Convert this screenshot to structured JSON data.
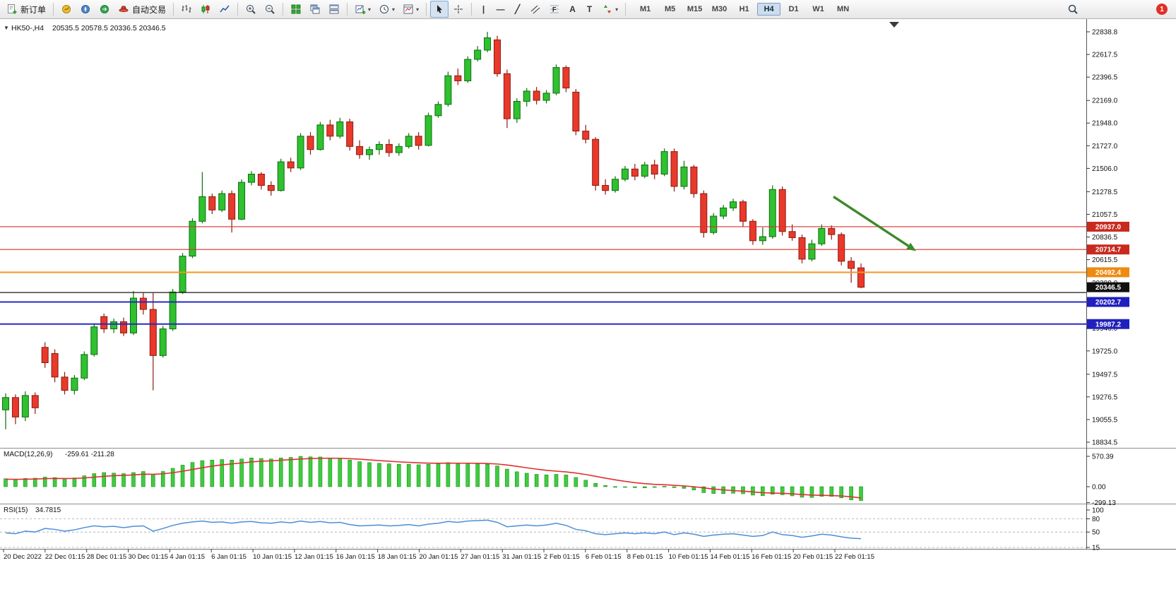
{
  "toolbar": {
    "new_order_label": "新订单",
    "auto_trading_label": "自动交易",
    "timeframes": [
      "M1",
      "M5",
      "M15",
      "M30",
      "H1",
      "H4",
      "D1",
      "W1",
      "MN"
    ],
    "active_timeframe": "H4",
    "notification_count": "1"
  },
  "icons": {
    "one_click_caret": "▼",
    "dropdown_caret": "▾",
    "vertical_line_glyph": "|",
    "horizontal_line_glyph": "—",
    "trendline_glyph": "╱",
    "fibonacci_glyph": "F",
    "text_tool_glyph": "A",
    "label_tool_glyph": "T"
  },
  "chart_header": {
    "symbol_period": "HK50-,H4",
    "ohlc": "20535.5 20578.5 20336.5 20346.5"
  },
  "panes": {
    "macd_title": "MACD(12,26,9)",
    "macd_values": "-259.61 -211.28",
    "rsi_title": "RSI(15)",
    "rsi_value": "34.7815"
  },
  "chart_data": {
    "type": "candlestick",
    "symbol": "HK50-",
    "timeframe": "H4",
    "panes_list": [
      "price",
      "macd",
      "rsi"
    ],
    "last_ohlc": {
      "open": 20535.5,
      "high": 20578.5,
      "low": 20336.5,
      "close": 20346.5
    },
    "colors": {
      "bull": "#2FC12F",
      "bull_edge": "#0E6E0E",
      "bear": "#E8392B",
      "bear_edge": "#8F1A10",
      "macd_hist": "#3FCC3F",
      "macd_hist_edge": "#179017",
      "macd_signal": "#E03030",
      "rsi_line": "#4B8FD5",
      "arrow": "#3C8A28"
    },
    "price_axis": {
      "max": 22838.8,
      "min": 18834.5,
      "ticks": [
        22838.8,
        22617.5,
        22396.5,
        22169.0,
        21948.0,
        21727.0,
        21506.0,
        21278.5,
        21057.5,
        20836.5,
        20615.5,
        20388.0,
        19946.0,
        19725.0,
        19497.5,
        19276.5,
        19055.5,
        18834.5
      ]
    },
    "hlines": [
      {
        "price": 20937.0,
        "color": "#DC3028",
        "width": 1.2,
        "tag": true,
        "tag_bg": "#C82A20"
      },
      {
        "price": 20714.7,
        "color": "#DC3028",
        "width": 1.2,
        "tag": true,
        "tag_bg": "#C82A20"
      },
      {
        "price": 20492.4,
        "color": "#F79420",
        "width": 2,
        "tag": true,
        "tag_bg": "#EF8A10"
      },
      {
        "price": 20295.0,
        "color": "#1A1A1A",
        "width": 1.2,
        "tag": false,
        "tag_bg": null
      },
      {
        "price": 20202.7,
        "color": "#2828C8",
        "width": 2,
        "tag": true,
        "tag_bg": "#2020BE"
      },
      {
        "price": 19987.2,
        "color": "#2828C8",
        "width": 2,
        "tag": true,
        "tag_bg": "#2020BE"
      }
    ],
    "current_price": {
      "value": 20346.5,
      "bg": "#101010"
    },
    "arrow": {
      "start_bar": 84.2,
      "start_price": 21230,
      "end_bar": 92.6,
      "end_price": 20700
    },
    "x_labels": [
      "20 Dec 2022",
      "22 Dec 01:15",
      "28 Dec 01:15",
      "30 Dec 01:15",
      "4 Jan 01:15",
      "6 Jan 01:15",
      "10 Jan 01:15",
      "12 Jan 01:15",
      "16 Jan 01:15",
      "18 Jan 01:15",
      "20 Jan 01:15",
      "27 Jan 01:15",
      "31 Jan 01:15",
      "2 Feb 01:15",
      "6 Feb 01:15",
      "8 Feb 01:15",
      "10 Feb 01:15",
      "14 Feb 01:15",
      "16 Feb 01:15",
      "20 Feb 01:15",
      "22 Feb 01:15"
    ],
    "candles": [
      [
        19150,
        19310,
        18960,
        19270
      ],
      [
        19270,
        19300,
        19010,
        19080
      ],
      [
        19080,
        19330,
        19040,
        19290
      ],
      [
        19290,
        19320,
        19110,
        19170
      ],
      [
        19760,
        19810,
        19560,
        19610
      ],
      [
        19700,
        19740,
        19420,
        19470
      ],
      [
        19470,
        19520,
        19300,
        19340
      ],
      [
        19340,
        19490,
        19300,
        19460
      ],
      [
        19460,
        19720,
        19440,
        19690
      ],
      [
        19690,
        19990,
        19670,
        19960
      ],
      [
        20060,
        20090,
        19900,
        19940
      ],
      [
        19940,
        20040,
        19900,
        20010
      ],
      [
        20010,
        20050,
        19870,
        19900
      ],
      [
        19900,
        20310,
        19880,
        20240
      ],
      [
        20240,
        20290,
        20080,
        20130
      ],
      [
        20130,
        20290,
        19340,
        19680
      ],
      [
        19680,
        19970,
        19660,
        19940
      ],
      [
        19940,
        20330,
        19920,
        20300
      ],
      [
        20300,
        20680,
        20280,
        20650
      ],
      [
        20650,
        21020,
        20630,
        20990
      ],
      [
        20990,
        21470,
        20970,
        21230
      ],
      [
        21230,
        21260,
        21060,
        21100
      ],
      [
        21100,
        21290,
        21080,
        21260
      ],
      [
        21260,
        21290,
        20880,
        21010
      ],
      [
        21010,
        21400,
        21000,
        21370
      ],
      [
        21370,
        21480,
        21340,
        21450
      ],
      [
        21450,
        21470,
        21300,
        21340
      ],
      [
        21340,
        21380,
        21240,
        21290
      ],
      [
        21290,
        21600,
        21280,
        21570
      ],
      [
        21570,
        21610,
        21470,
        21510
      ],
      [
        21510,
        21850,
        21490,
        21820
      ],
      [
        21820,
        21860,
        21640,
        21690
      ],
      [
        21690,
        21960,
        21680,
        21930
      ],
      [
        21930,
        21980,
        21780,
        21820
      ],
      [
        21820,
        22000,
        21800,
        21960
      ],
      [
        21960,
        21990,
        21680,
        21720
      ],
      [
        21720,
        21780,
        21600,
        21640
      ],
      [
        21640,
        21720,
        21590,
        21690
      ],
      [
        21690,
        21770,
        21640,
        21740
      ],
      [
        21740,
        21790,
        21620,
        21660
      ],
      [
        21660,
        21750,
        21630,
        21720
      ],
      [
        21720,
        21850,
        21700,
        21820
      ],
      [
        21820,
        21860,
        21690,
        21730
      ],
      [
        21730,
        22050,
        21720,
        22020
      ],
      [
        22020,
        22160,
        22000,
        22130
      ],
      [
        22130,
        22450,
        22110,
        22410
      ],
      [
        22410,
        22480,
        22320,
        22360
      ],
      [
        22360,
        22600,
        22340,
        22570
      ],
      [
        22570,
        22700,
        22550,
        22660
      ],
      [
        22660,
        22838,
        22640,
        22780
      ],
      [
        22760,
        22800,
        22400,
        22430
      ],
      [
        22430,
        22470,
        21900,
        21990
      ],
      [
        21990,
        22190,
        21950,
        22160
      ],
      [
        22160,
        22290,
        22110,
        22260
      ],
      [
        22260,
        22300,
        22130,
        22170
      ],
      [
        22170,
        22270,
        22140,
        22240
      ],
      [
        22240,
        22520,
        22220,
        22490
      ],
      [
        22490,
        22510,
        22250,
        22290
      ],
      [
        22250,
        22280,
        21830,
        21870
      ],
      [
        21870,
        21930,
        21750,
        21790
      ],
      [
        21790,
        21810,
        21290,
        21340
      ],
      [
        21340,
        21400,
        21250,
        21290
      ],
      [
        21290,
        21430,
        21270,
        21400
      ],
      [
        21400,
        21530,
        21380,
        21500
      ],
      [
        21500,
        21550,
        21390,
        21430
      ],
      [
        21430,
        21570,
        21410,
        21540
      ],
      [
        21540,
        21590,
        21400,
        21450
      ],
      [
        21450,
        21700,
        21430,
        21670
      ],
      [
        21670,
        21700,
        21280,
        21330
      ],
      [
        21330,
        21580,
        21300,
        21520
      ],
      [
        21520,
        21540,
        21220,
        21260
      ],
      [
        21260,
        21290,
        20830,
        20880
      ],
      [
        20880,
        21070,
        20860,
        21040
      ],
      [
        21040,
        21150,
        21010,
        21120
      ],
      [
        21120,
        21210,
        21090,
        21180
      ],
      [
        21180,
        21200,
        20940,
        20990
      ],
      [
        20990,
        21010,
        20760,
        20800
      ],
      [
        20800,
        20930,
        20760,
        20840
      ],
      [
        20840,
        21340,
        20820,
        21300
      ],
      [
        21300,
        21330,
        20850,
        20890
      ],
      [
        20890,
        20960,
        20800,
        20830
      ],
      [
        20830,
        20860,
        20580,
        20620
      ],
      [
        20620,
        20810,
        20600,
        20770
      ],
      [
        20770,
        20960,
        20750,
        20920
      ],
      [
        20920,
        20950,
        20810,
        20860
      ],
      [
        20860,
        20880,
        20560,
        20600
      ],
      [
        20600,
        20640,
        20390,
        20530
      ],
      [
        20535.5,
        20578.5,
        20336.5,
        20346.5
      ]
    ],
    "macd": {
      "params": "12,26,9",
      "main_value": -259.61,
      "signal_value": -211.28,
      "axis_ticks": [
        570.39,
        0.0,
        -299.13
      ],
      "histogram": [
        150,
        140,
        155,
        160,
        180,
        170,
        155,
        165,
        205,
        245,
        265,
        255,
        245,
        265,
        285,
        235,
        285,
        345,
        405,
        455,
        490,
        500,
        510,
        500,
        520,
        540,
        530,
        520,
        540,
        550,
        570,
        560,
        558,
        540,
        528,
        500,
        470,
        452,
        440,
        430,
        422,
        420,
        412,
        420,
        432,
        452,
        442,
        440,
        430,
        420,
        390,
        330,
        280,
        252,
        232,
        222,
        232,
        220,
        172,
        122,
        62,
        22,
        2,
        -8,
        -18,
        -22,
        -12,
        8,
        -18,
        -32,
        -62,
        -112,
        -128,
        -130,
        -122,
        -132,
        -158,
        -168,
        -142,
        -152,
        -172,
        -198,
        -202,
        -182,
        -182,
        -210,
        -248,
        -259.61
      ],
      "signal": [
        140,
        138,
        140,
        144,
        151,
        155,
        154,
        155,
        164,
        179,
        195,
        206,
        213,
        222,
        234,
        233,
        242,
        262,
        290,
        322,
        356,
        385,
        410,
        428,
        446,
        465,
        478,
        486,
        497,
        508,
        520,
        528,
        534,
        535,
        534,
        527,
        516,
        503,
        490,
        478,
        466,
        457,
        448,
        442,
        440,
        442,
        441,
        441,
        439,
        435,
        426,
        407,
        382,
        355,
        330,
        308,
        292,
        278,
        256,
        229,
        195,
        160,
        128,
        100,
        76,
        57,
        44,
        37,
        26,
        15,
        0,
        -22,
        -44,
        -61,
        -73,
        -84,
        -99,
        -113,
        -119,
        -125,
        -134,
        -147,
        -158,
        -162,
        -166,
        -175,
        -190,
        -211.28
      ]
    },
    "rsi": {
      "period": 15,
      "value": 34.7815,
      "levels": [
        80,
        50,
        15
      ],
      "axis_ticks": [
        100,
        80,
        50,
        15
      ],
      "values": [
        48,
        46,
        52,
        50,
        58,
        56,
        52,
        55,
        60,
        64,
        62,
        63,
        60,
        63,
        64,
        52,
        58,
        65,
        70,
        73,
        75,
        72,
        73,
        70,
        73,
        74,
        71,
        70,
        73,
        71,
        75,
        72,
        74,
        71,
        72,
        67,
        64,
        65,
        66,
        64,
        65,
        67,
        64,
        68,
        70,
        74,
        72,
        75,
        76,
        77,
        72,
        62,
        64,
        66,
        64,
        66,
        70,
        65,
        56,
        53,
        46,
        44,
        46,
        48,
        46,
        48,
        46,
        50,
        44,
        48,
        45,
        40,
        43,
        45,
        46,
        43,
        40,
        42,
        50,
        44,
        42,
        38,
        41,
        45,
        43,
        39,
        36,
        34.78
      ]
    }
  }
}
